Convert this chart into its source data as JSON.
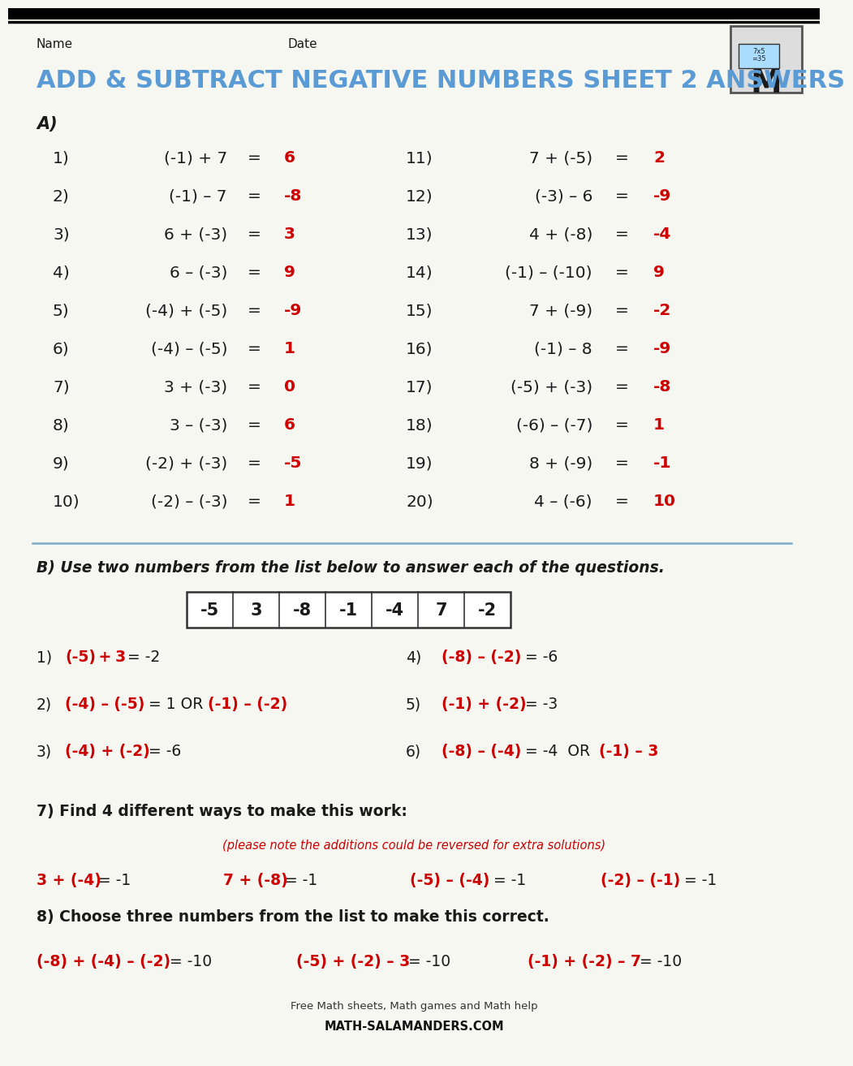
{
  "title": "ADD & SUBTRACT NEGATIVE NUMBERS SHEET 2 ANSWERS",
  "title_color": "#5b9bd5",
  "bg_color": "#f7f7f2",
  "black": "#1a1a1a",
  "red": "#cc0000",
  "sep_color": "#7aadcc",
  "problems_left": [
    {
      "num": "1)",
      "expr": "(-1) + 7",
      "ans": "6"
    },
    {
      "num": "2)",
      "expr": "(-1) – 7",
      "ans": "-8"
    },
    {
      "num": "3)",
      "expr": "6 + (-3)",
      "ans": "3"
    },
    {
      "num": "4)",
      "expr": "6 – (-3)",
      "ans": "9"
    },
    {
      "num": "5)",
      "expr": "(-4) + (-5)",
      "ans": "-9"
    },
    {
      "num": "6)",
      "expr": "(-4) – (-5)",
      "ans": "1"
    },
    {
      "num": "7)",
      "expr": "3 + (-3)",
      "ans": "0"
    },
    {
      "num": "8)",
      "expr": "3 – (-3)",
      "ans": "6"
    },
    {
      "num": "9)",
      "expr": "(-2) + (-3)",
      "ans": "-5"
    },
    {
      "num": "10)",
      "expr": "(-2) – (-3)",
      "ans": "1"
    }
  ],
  "problems_right": [
    {
      "num": "11)",
      "expr": "7 + (-5)",
      "ans": "2"
    },
    {
      "num": "12)",
      "expr": "(-3) – 6",
      "ans": "-9"
    },
    {
      "num": "13)",
      "expr": "4 + (-8)",
      "ans": "-4"
    },
    {
      "num": "14)",
      "expr": "(-1) – (-10)",
      "ans": "9"
    },
    {
      "num": "15)",
      "expr": "7 + (-9)",
      "ans": "-2"
    },
    {
      "num": "16)",
      "expr": "(-1) – 8",
      "ans": "-9"
    },
    {
      "num": "17)",
      "expr": "(-5) + (-3)",
      "ans": "-8"
    },
    {
      "num": "18)",
      "expr": "(-6) – (-7)",
      "ans": "1"
    },
    {
      "num": "19)",
      "expr": "8 + (-9)",
      "ans": "-1"
    },
    {
      "num": "20)",
      "expr": "4 – (-6)",
      "ans": "10"
    }
  ],
  "number_list": [
    "-5",
    "3",
    "-8",
    "-1",
    "-4",
    "7",
    "-2"
  ]
}
